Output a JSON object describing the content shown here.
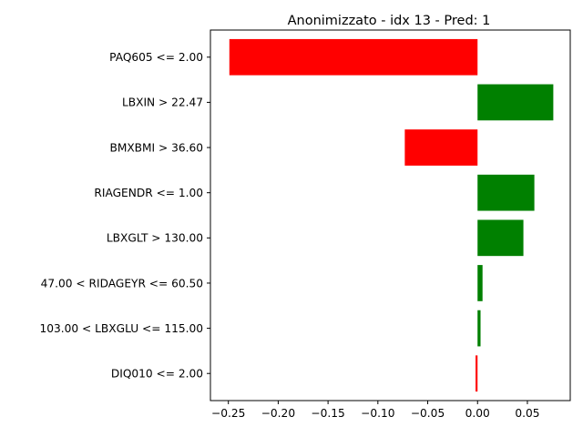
{
  "chart_data": {
    "type": "bar",
    "orientation": "horizontal",
    "title": "Anonimizzato - idx 13 - Pred: 1",
    "xlabel": "",
    "ylabel": "",
    "xlim": [
      -0.268,
      0.093
    ],
    "xticks": [
      -0.25,
      -0.2,
      -0.15,
      -0.1,
      -0.05,
      0.0,
      0.05
    ],
    "xtick_labels": [
      "−0.25",
      "−0.20",
      "−0.15",
      "−0.10",
      "−0.05",
      "0.00",
      "0.05"
    ],
    "grid": false,
    "categories": [
      "PAQ605 <= 2.00",
      "LBXIN > 22.47",
      "BMXBMI > 36.60",
      "RIAGENDR <= 1.00",
      "LBXGLT > 130.00",
      "47.00 < RIDAGEYR <= 60.50",
      "103.00 < LBXGLU <= 115.00",
      "DIQ010 <= 2.00"
    ],
    "values": [
      -0.249,
      0.076,
      -0.073,
      0.057,
      0.046,
      0.005,
      0.003,
      -0.002
    ],
    "colors": {
      "positive": "#008000",
      "negative": "#ff0000"
    }
  }
}
